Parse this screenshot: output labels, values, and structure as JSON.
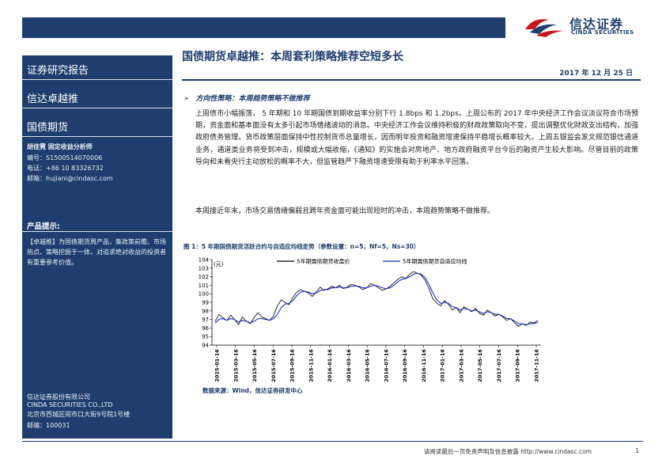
{
  "logo": {
    "cn": "信达证券",
    "en": "CINDA SECURITIES"
  },
  "sidebar": {
    "report_type": "证券研究报告",
    "series": "信达卓越推",
    "category": "国债期货",
    "analyst": "胡佳霓   固定收益分析师",
    "reg_no": "编号：S1500514070006",
    "phone": "电话：+86 10 83326732",
    "email": "邮箱：hujiani@cindasc.com",
    "product_tip_label": "产品提示:",
    "product_tip_text": "【卓越推】为国债期货周产品，集政策前瞻、市场热点、策略挖掘于一体，对追求绝对收益的投资者有重要参考价值。",
    "company_cn": "信达证券股份有限公司",
    "company_en": "CINDA SECURITIES CO.,LTD",
    "address": "北京市西城区闹市口大街9号院1号楼",
    "postcode": "邮编：100031"
  },
  "header": {
    "title": "国债期货卓越推：本周套利策略推荐空短多长",
    "date": "2017 年 12 月 25 日"
  },
  "section": {
    "heading": "方向性策略：本周趋势策略不做推荐",
    "para1": "上周债市小幅振荡， 5 年期和 10 年期国债到期收益率分别下行 1.8bps 和 1.2bps。上周公布的 2017 年中央经济工作会议淡议符合市场预期，资金面和基本面没有太多引起市场情绪波动的消息。中央经济工作会议维持积极的财政政策取向不变，提出调整优化财政支出结构，加强政府债务管理。货币政策层面保持中性控制货币总量增长，因而明年投资和融资增速保持平稳增长概率较大。上周五银监会发文规范银信通道业务，通道类业务将受到冲击，规模或大幅收缩，《通知》的实施会对房地产、地方政府融资平台今后的融资产生较大影响。尽管目前的政策导向和未看央行主动放松的概率不大，但监管趋严下融资增速受限有助于利率水平回落。",
    "para2": "本周接近年末，市场交易情绪偏弱且跨年资金面可能出现短时的冲击，本周趋势策略不做推荐。"
  },
  "figure": {
    "title": "图 1：5 年期国债期货活跃合约与自适应均线走势（参数设置：n=5，Nf=5，Ns=30）",
    "source": "数据来源：Wind，信达证券研发中心"
  },
  "chart_data": {
    "type": "line",
    "ylabel": "(元)",
    "ylim": [
      94,
      104
    ],
    "yticks": [
      94,
      95,
      96,
      97,
      98,
      99,
      100,
      101,
      102,
      103,
      104
    ],
    "xticks": [
      "2015-01-16",
      "2015-03-16",
      "2015-05-16",
      "2015-07-16",
      "2015-09-16",
      "2015-11-16",
      "2016-01-16",
      "2016-03-16",
      "2016-05-16",
      "2016-07-16",
      "2016-09-16",
      "2016-11-16",
      "2017-01-16",
      "2017-03-16",
      "2017-05-16",
      "2017-07-16",
      "2017-09-16",
      "2017-11-16"
    ],
    "series": [
      {
        "name": "5年期国债期货收盘价",
        "color": "#000000",
        "values": [
          96.8,
          97.6,
          97.2,
          96.9,
          97.5,
          97.0,
          96.4,
          97.3,
          96.8,
          96.5,
          97.2,
          97.8,
          97.3,
          97.1,
          96.9,
          97.4,
          98.6,
          99.3,
          99.0,
          98.7,
          99.6,
          100.2,
          100.5,
          100.3,
          100.1,
          99.7,
          100.2,
          100.8,
          100.4,
          100.6,
          100.9,
          100.7,
          101.0,
          100.6,
          100.8,
          101.1,
          101.0,
          100.8,
          100.5,
          100.7,
          101.2,
          101.0,
          100.7,
          100.4,
          100.6,
          100.9,
          101.3,
          101.7,
          102.0,
          101.8,
          102.3,
          102.6,
          102.4,
          102.2,
          101.6,
          100.6,
          99.4,
          98.9,
          98.6,
          99.2,
          98.8,
          98.1,
          98.4,
          97.8,
          98.5,
          98.2,
          97.9,
          98.3,
          97.7,
          97.5,
          98.1,
          97.8,
          97.4,
          97.6,
          97.3,
          96.9,
          97.1,
          96.6,
          96.2,
          96.5,
          96.3,
          96.7,
          96.6,
          96.9
        ]
      },
      {
        "name": "5年期国债期货自适应均线",
        "color": "#1a2ecc",
        "values": [
          96.6,
          97.0,
          97.1,
          96.9,
          97.1,
          97.0,
          96.7,
          96.9,
          96.8,
          96.6,
          96.8,
          97.1,
          97.1,
          97.0,
          96.9,
          97.1,
          97.6,
          98.4,
          98.8,
          98.9,
          99.2,
          99.8,
          100.2,
          100.3,
          100.2,
          100.0,
          100.1,
          100.4,
          100.5,
          100.5,
          100.7,
          100.7,
          100.8,
          100.7,
          100.7,
          100.9,
          100.9,
          100.9,
          100.7,
          100.7,
          100.9,
          101.0,
          100.9,
          100.7,
          100.6,
          100.7,
          101.0,
          101.4,
          101.7,
          101.8,
          102.0,
          102.3,
          102.4,
          102.3,
          101.9,
          101.1,
          100.1,
          99.3,
          98.9,
          99.0,
          98.9,
          98.5,
          98.4,
          98.1,
          98.3,
          98.2,
          98.0,
          98.1,
          97.9,
          97.7,
          97.9,
          97.8,
          97.6,
          97.6,
          97.4,
          97.1,
          97.1,
          96.8,
          96.5,
          96.5,
          96.4,
          96.5,
          96.5,
          96.7
        ]
      }
    ]
  },
  "footer": {
    "disclaimer": "请阅读最后一页免责声明及信息披露 http://www.cindasc.com",
    "page": "1"
  }
}
